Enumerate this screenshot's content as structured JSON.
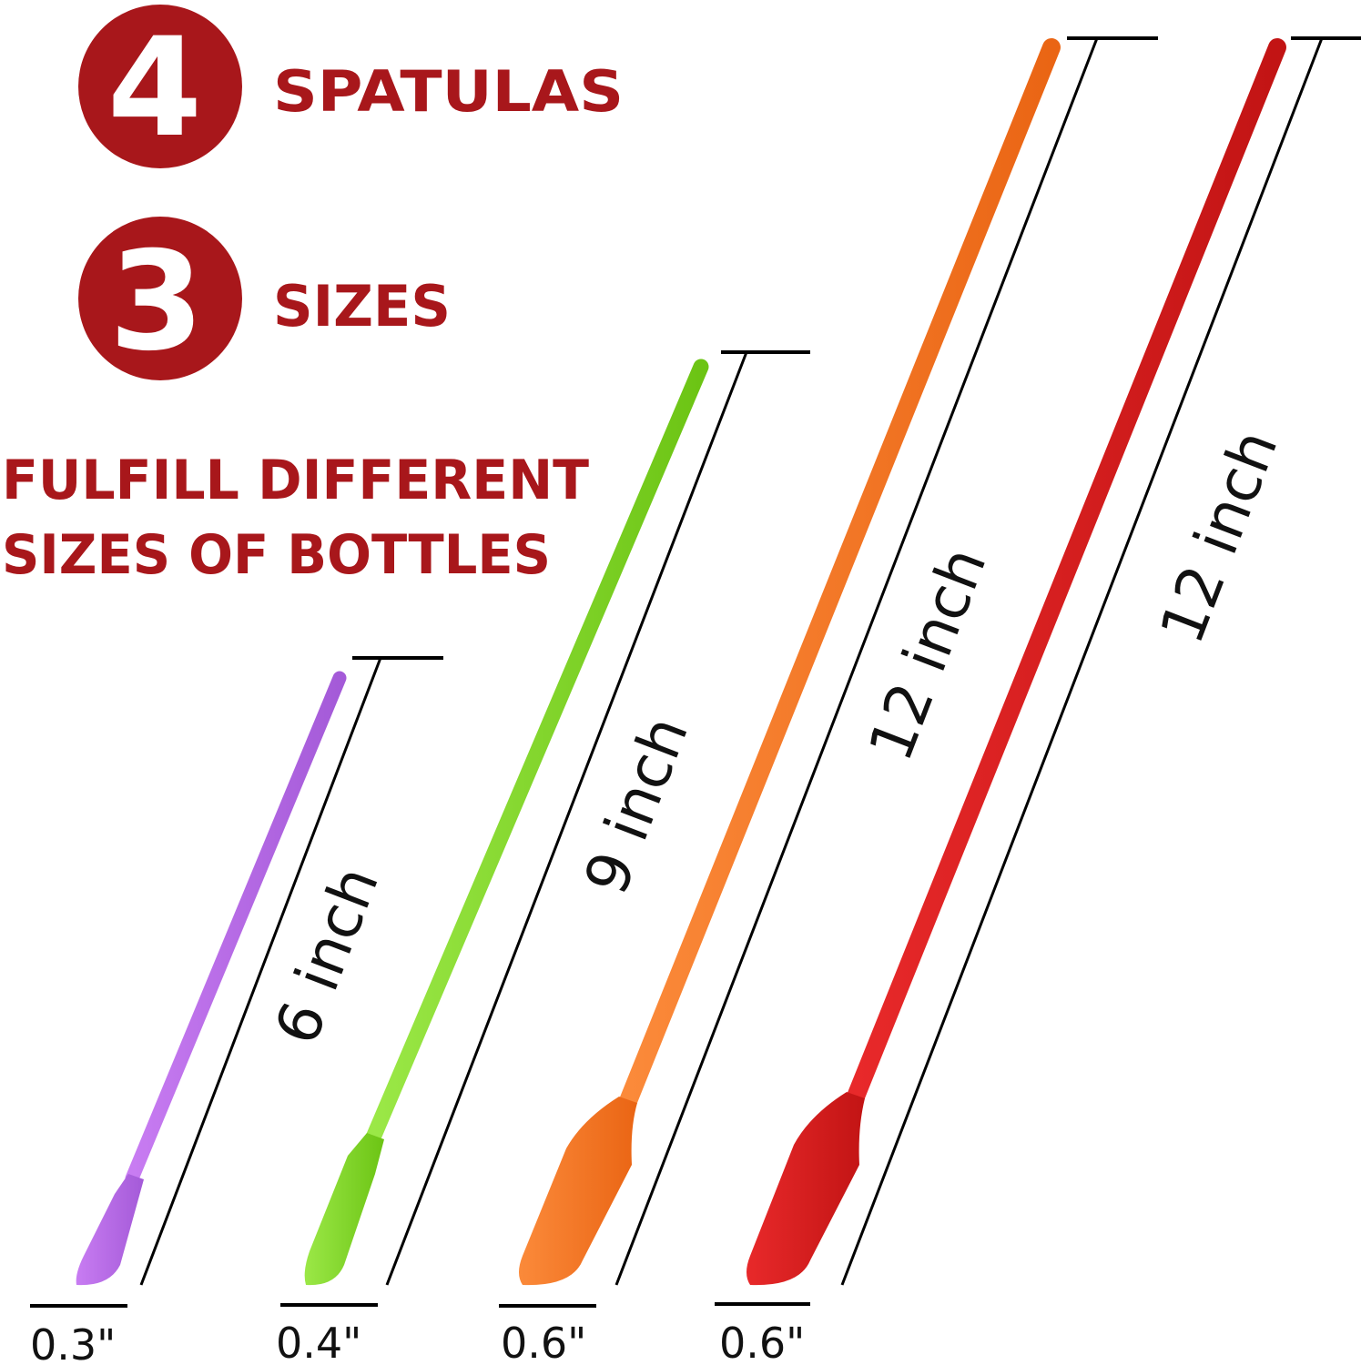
{
  "headline": {
    "count_number": "4",
    "count_label": "SPATULAS",
    "sizes_number": "3",
    "sizes_label": "SIZES",
    "tagline_line1": "FULFILL DIFFERENT",
    "tagline_line2": "SIZES OF BOTTLES"
  },
  "colors": {
    "brand_red": "#a8171b",
    "purple": "#b56ae6",
    "green": "#7ed321",
    "orange": "#f57a25",
    "red": "#dc1f1f"
  },
  "spatulas": [
    {
      "color": "purple",
      "length_label": "6 inch",
      "width_label": "0.3\""
    },
    {
      "color": "green",
      "length_label": "9 inch",
      "width_label": "0.4\""
    },
    {
      "color": "orange",
      "length_label": "12 inch",
      "width_label": "0.6\""
    },
    {
      "color": "red",
      "length_label": "12 inch",
      "width_label": "0.6\""
    }
  ]
}
